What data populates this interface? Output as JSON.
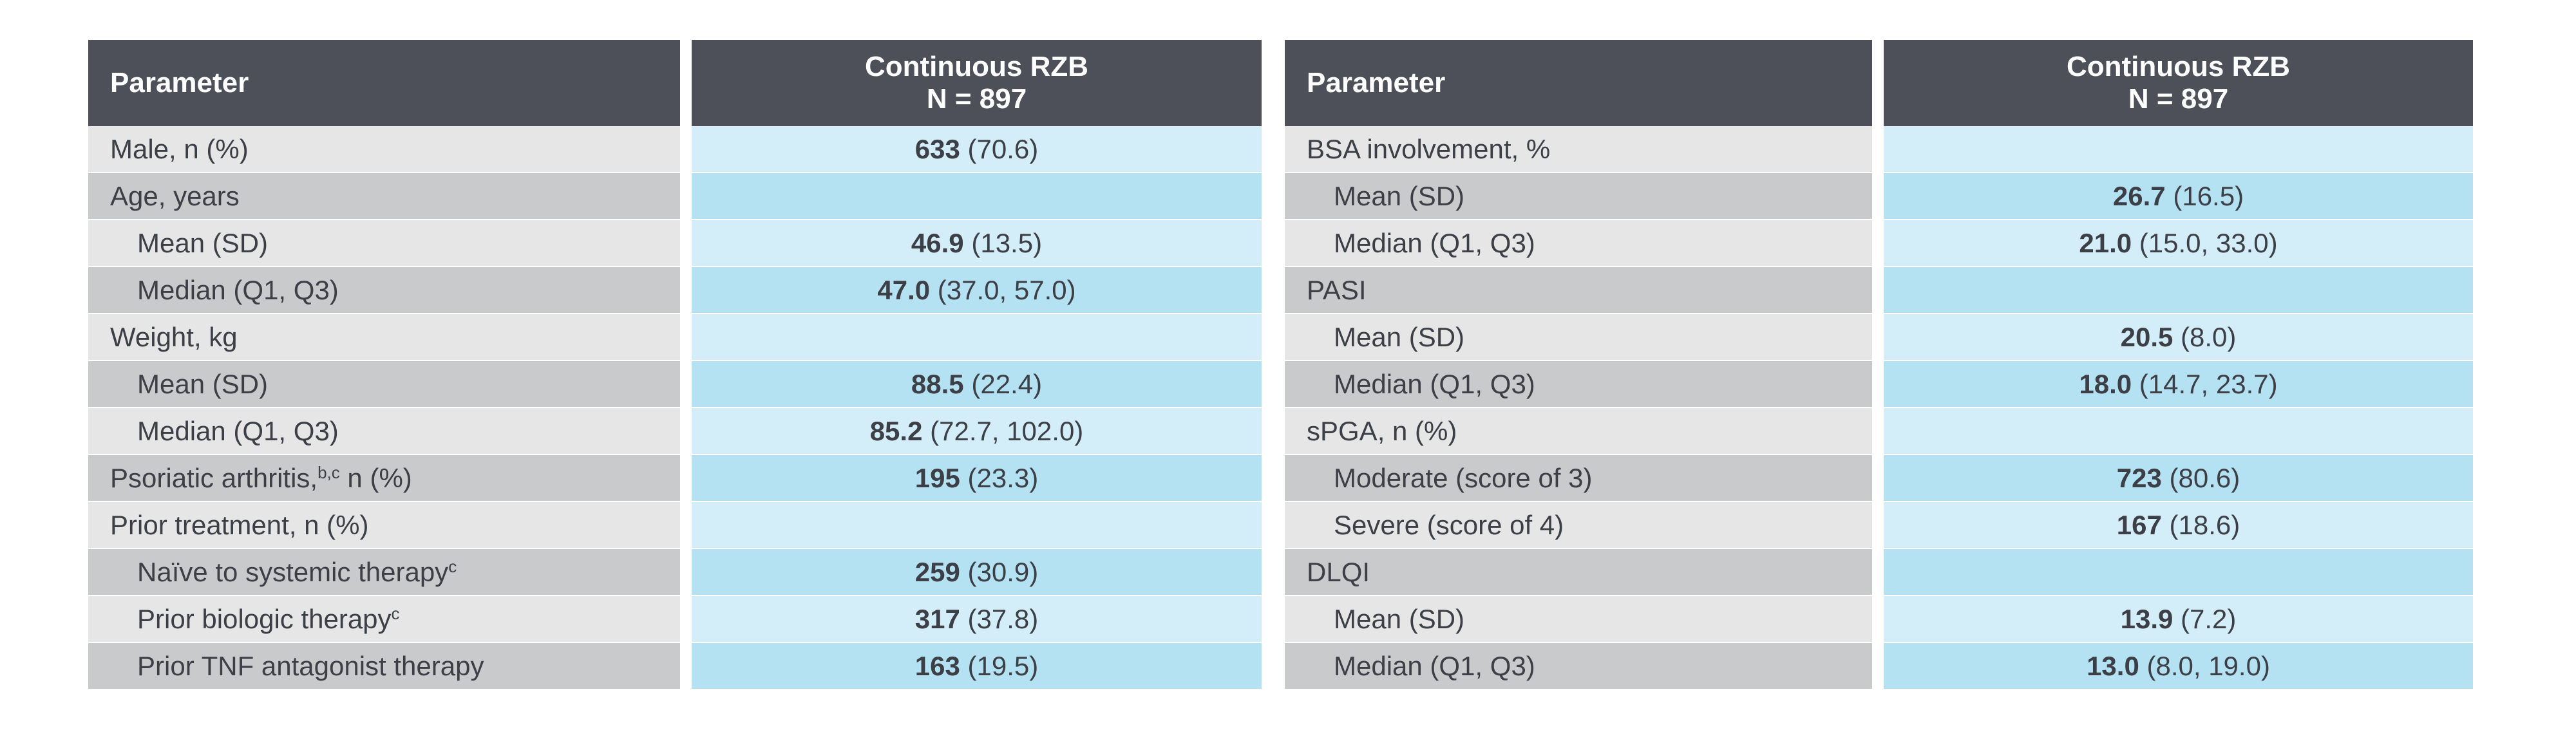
{
  "left_table": {
    "header": {
      "param": "Parameter",
      "group_line1": "Continuous RZB",
      "group_line2": "N = 897"
    },
    "rows": [
      {
        "label": "Male, n (%)",
        "sup": "",
        "after": "",
        "indent": false,
        "value": "633",
        "detail": "(70.6)"
      },
      {
        "label": "Age, years",
        "sup": "",
        "after": "",
        "indent": false,
        "value": "",
        "detail": ""
      },
      {
        "label": "Mean (SD)",
        "sup": "",
        "after": "",
        "indent": true,
        "value": "46.9",
        "detail": "(13.5)"
      },
      {
        "label": "Median (Q1, Q3)",
        "sup": "",
        "after": "",
        "indent": true,
        "value": "47.0",
        "detail": "(37.0, 57.0)"
      },
      {
        "label": "Weight, kg",
        "sup": "",
        "after": "",
        "indent": false,
        "value": "",
        "detail": ""
      },
      {
        "label": "Mean (SD)",
        "sup": "",
        "after": "",
        "indent": true,
        "value": "88.5",
        "detail": "(22.4)"
      },
      {
        "label": "Median (Q1, Q3)",
        "sup": "",
        "after": "",
        "indent": true,
        "value": "85.2",
        "detail": "(72.7, 102.0)"
      },
      {
        "label": "Psoriatic arthritis,",
        "sup": "b,c",
        "after": " n (%)",
        "indent": false,
        "value": "195",
        "detail": "(23.3)"
      },
      {
        "label": "Prior treatment, n (%)",
        "sup": "",
        "after": "",
        "indent": false,
        "value": "",
        "detail": ""
      },
      {
        "label": "Naïve to systemic therapy",
        "sup": "c",
        "after": "",
        "indent": true,
        "value": "259",
        "detail": "(30.9)"
      },
      {
        "label": "Prior biologic therapy",
        "sup": "c",
        "after": "",
        "indent": true,
        "value": "317",
        "detail": "(37.8)"
      },
      {
        "label": "Prior TNF antagonist therapy",
        "sup": "",
        "after": "",
        "indent": true,
        "value": "163",
        "detail": "(19.5)"
      }
    ]
  },
  "right_table": {
    "header": {
      "param": "Parameter",
      "group_line1": "Continuous RZB",
      "group_line2": "N = 897"
    },
    "rows": [
      {
        "label": "BSA involvement, %",
        "sup": "",
        "after": "",
        "indent": false,
        "value": "",
        "detail": ""
      },
      {
        "label": "Mean (SD)",
        "sup": "",
        "after": "",
        "indent": true,
        "value": "26.7",
        "detail": "(16.5)"
      },
      {
        "label": "Median (Q1, Q3)",
        "sup": "",
        "after": "",
        "indent": true,
        "value": "21.0",
        "detail": "(15.0, 33.0)"
      },
      {
        "label": "PASI",
        "sup": "",
        "after": "",
        "indent": false,
        "value": "",
        "detail": ""
      },
      {
        "label": "Mean (SD)",
        "sup": "",
        "after": "",
        "indent": true,
        "value": "20.5",
        "detail": "(8.0)"
      },
      {
        "label": "Median (Q1, Q3)",
        "sup": "",
        "after": "",
        "indent": true,
        "value": "18.0",
        "detail": "(14.7, 23.7)"
      },
      {
        "label": "sPGA, n (%)",
        "sup": "",
        "after": "",
        "indent": false,
        "value": "",
        "detail": ""
      },
      {
        "label": "Moderate (score of 3)",
        "sup": "",
        "after": "",
        "indent": true,
        "value": "723",
        "detail": "(80.6)"
      },
      {
        "label": "Severe (score of 4)",
        "sup": "",
        "after": "",
        "indent": true,
        "value": "167",
        "detail": "(18.6)"
      },
      {
        "label": "DLQI",
        "sup": "",
        "after": "",
        "indent": false,
        "value": "",
        "detail": ""
      },
      {
        "label": "Mean (SD)",
        "sup": "",
        "after": "",
        "indent": true,
        "value": "13.9",
        "detail": "(7.2)"
      },
      {
        "label": "Median (Q1, Q3)",
        "sup": "",
        "after": "",
        "indent": true,
        "value": "13.0",
        "detail": "(8.0, 19.0)"
      }
    ]
  },
  "colors": {
    "header_bg": "#4d5058",
    "label_light": "#e6e6e7",
    "label_dark": "#c9cacc",
    "value_light": "#d4eef9",
    "value_dark": "#b4e2f3"
  }
}
